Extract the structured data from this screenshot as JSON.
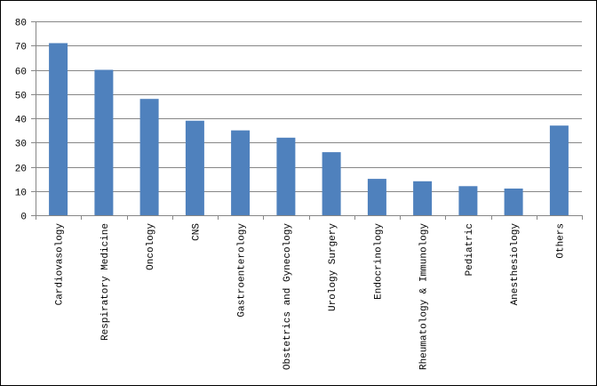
{
  "chart_data": {
    "type": "bar",
    "title": "",
    "xlabel": "",
    "ylabel": "",
    "ylim": [
      0,
      80
    ],
    "yticks": [
      0,
      10,
      20,
      30,
      40,
      50,
      60,
      70,
      80
    ],
    "grid": true,
    "legend": "none",
    "bar_color": "#4f81bd",
    "grid_color": "#878787",
    "categories": [
      "Cardiovasology",
      "Respiratory Medicine",
      "Oncology",
      "CNS",
      "Gastroenterology",
      "Obstetrics and Gynecology",
      "Urology Surgery",
      "Endocrinology",
      "Rheumatology & Immunology",
      "Pediatric",
      "Anesthesiology",
      "Others"
    ],
    "values": [
      71,
      60,
      48,
      39,
      35,
      32,
      26,
      15,
      14,
      12,
      11,
      37
    ]
  }
}
